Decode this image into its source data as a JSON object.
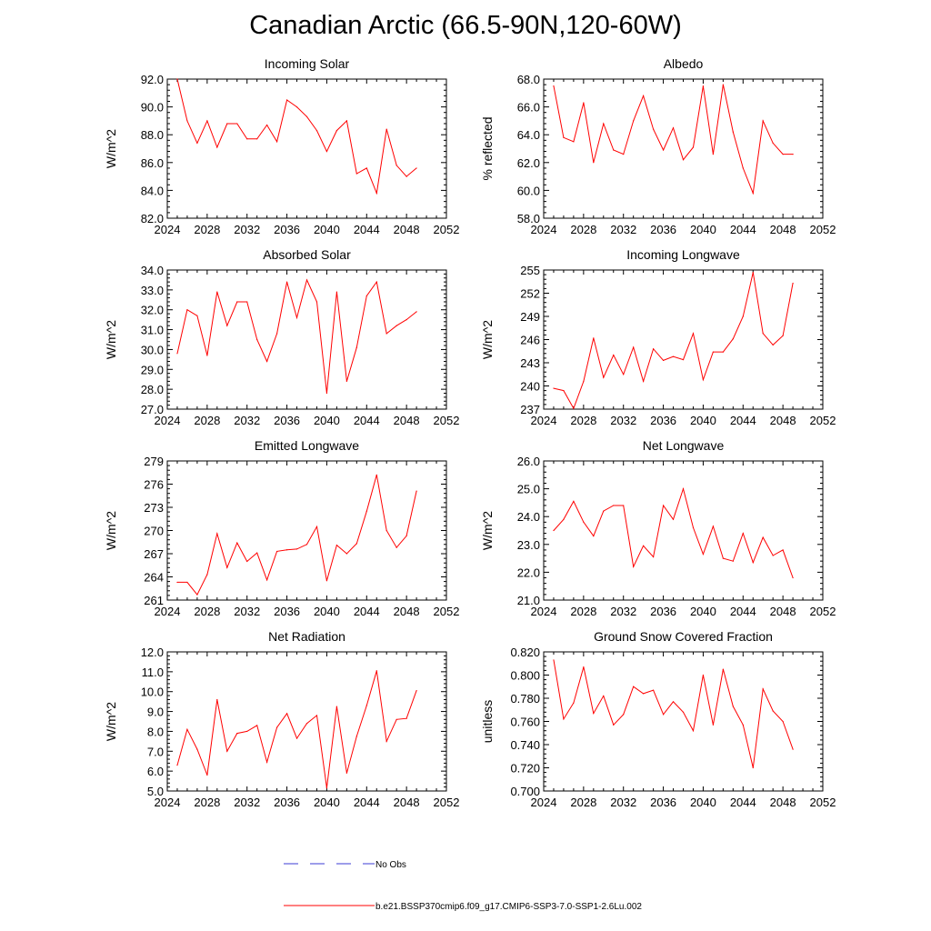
{
  "figure": {
    "title": "Canadian Arctic (66.5-90N,120-60W)"
  },
  "chart_data": [
    {
      "type": "line",
      "title": "Incoming Solar",
      "ylabel": "W/m^2",
      "xlim": [
        2024,
        2052
      ],
      "ylim": [
        82.0,
        92.0
      ],
      "xticks": [
        "2024",
        "2028",
        "2032",
        "2036",
        "2040",
        "2044",
        "2048",
        "2052"
      ],
      "yticks": [
        "82.0",
        "84.0",
        "86.0",
        "88.0",
        "90.0",
        "92.0"
      ],
      "ytick_values": [
        82,
        84,
        86,
        88,
        90,
        92
      ],
      "series": [
        {
          "name": "b.e21.BSSP370cmip6.f09_g17.CMIP6-SSP3-7.0-SSP1-2.6Lu.002",
          "x": [
            2025,
            2026,
            2027,
            2028,
            2029,
            2030,
            2031,
            2032,
            2033,
            2034,
            2035,
            2036,
            2037,
            2038,
            2039,
            2040,
            2041,
            2042,
            2043,
            2044,
            2045,
            2046,
            2047,
            2048,
            2049
          ],
          "values": [
            92.0,
            89.0,
            87.4,
            89.0,
            87.1,
            88.8,
            88.8,
            87.7,
            87.7,
            88.7,
            87.5,
            90.5,
            90.0,
            89.3,
            88.3,
            86.8,
            88.3,
            89.0,
            85.2,
            85.6,
            83.8,
            88.4,
            85.8,
            85.0,
            85.6
          ]
        }
      ]
    },
    {
      "type": "line",
      "title": "Albedo",
      "ylabel": "% reflected",
      "xlim": [
        2024,
        2052
      ],
      "ylim": [
        58.0,
        68.0
      ],
      "xticks": [
        "2024",
        "2028",
        "2032",
        "2036",
        "2040",
        "2044",
        "2048",
        "2052"
      ],
      "yticks": [
        "58.0",
        "60.0",
        "62.0",
        "64.0",
        "66.0",
        "68.0"
      ],
      "ytick_values": [
        58,
        60,
        62,
        64,
        66,
        68
      ],
      "series": [
        {
          "name": "b.e21.BSSP370cmip6.f09_g17.CMIP6-SSP3-7.0-SSP1-2.6Lu.002",
          "x": [
            2025,
            2026,
            2027,
            2028,
            2029,
            2030,
            2031,
            2032,
            2033,
            2034,
            2035,
            2036,
            2037,
            2038,
            2039,
            2040,
            2041,
            2042,
            2043,
            2044,
            2045,
            2046,
            2047,
            2048,
            2049
          ],
          "values": [
            67.5,
            63.8,
            63.5,
            66.3,
            62.0,
            64.8,
            62.9,
            62.6,
            65.0,
            66.8,
            64.4,
            62.9,
            64.5,
            62.2,
            63.1,
            67.5,
            62.6,
            67.6,
            64.2,
            61.6,
            59.8,
            65.0,
            63.4,
            62.6,
            62.6
          ]
        }
      ]
    },
    {
      "type": "line",
      "title": "Absorbed Solar",
      "ylabel": "W/m^2",
      "xlim": [
        2024,
        2052
      ],
      "ylim": [
        27.0,
        34.0
      ],
      "xticks": [
        "2024",
        "2028",
        "2032",
        "2036",
        "2040",
        "2044",
        "2048",
        "2052"
      ],
      "yticks": [
        "27.0",
        "28.0",
        "29.0",
        "30.0",
        "31.0",
        "32.0",
        "33.0",
        "34.0"
      ],
      "ytick_values": [
        27,
        28,
        29,
        30,
        31,
        32,
        33,
        34
      ],
      "series": [
        {
          "name": "b.e21.BSSP370cmip6.f09_g17.CMIP6-SSP3-7.0-SSP1-2.6Lu.002",
          "x": [
            2025,
            2026,
            2027,
            2028,
            2029,
            2030,
            2031,
            2032,
            2033,
            2034,
            2035,
            2036,
            2037,
            2038,
            2039,
            2040,
            2041,
            2042,
            2043,
            2044,
            2045,
            2046,
            2047,
            2048,
            2049
          ],
          "values": [
            29.8,
            32.0,
            31.7,
            29.7,
            32.9,
            31.2,
            32.4,
            32.4,
            30.5,
            29.4,
            30.8,
            33.4,
            31.6,
            33.5,
            32.4,
            27.8,
            32.9,
            28.4,
            30.1,
            32.7,
            33.4,
            30.8,
            31.2,
            31.5,
            31.9
          ]
        }
      ]
    },
    {
      "type": "line",
      "title": "Incoming Longwave",
      "ylabel": "W/m^2",
      "xlim": [
        2024,
        2052
      ],
      "ylim": [
        237,
        255
      ],
      "xticks": [
        "2024",
        "2028",
        "2032",
        "2036",
        "2040",
        "2044",
        "2048",
        "2052"
      ],
      "yticks": [
        "237",
        "240",
        "243",
        "246",
        "249",
        "252",
        "255"
      ],
      "ytick_values": [
        237,
        240,
        243,
        246,
        249,
        252,
        255
      ],
      "series": [
        {
          "name": "b.e21.BSSP370cmip6.f09_g17.CMIP6-SSP3-7.0-SSP1-2.6Lu.002",
          "x": [
            2025,
            2026,
            2027,
            2028,
            2029,
            2030,
            2031,
            2032,
            2033,
            2034,
            2035,
            2036,
            2037,
            2038,
            2039,
            2040,
            2041,
            2042,
            2043,
            2044,
            2045,
            2046,
            2047,
            2048,
            2049
          ],
          "values": [
            239.7,
            239.4,
            237.1,
            240.6,
            246.2,
            241.1,
            244.0,
            241.5,
            245.0,
            240.6,
            244.8,
            243.3,
            243.8,
            243.4,
            246.8,
            240.8,
            244.4,
            244.4,
            246.1,
            249.0,
            254.7,
            246.8,
            245.3,
            246.5,
            253.3
          ]
        }
      ]
    },
    {
      "type": "line",
      "title": "Emitted Longwave",
      "ylabel": "W/m^2",
      "xlim": [
        2024,
        2052
      ],
      "ylim": [
        261,
        279
      ],
      "xticks": [
        "2024",
        "2028",
        "2032",
        "2036",
        "2040",
        "2044",
        "2048",
        "2052"
      ],
      "yticks": [
        "261",
        "264",
        "267",
        "270",
        "273",
        "276",
        "279"
      ],
      "ytick_values": [
        261,
        264,
        267,
        270,
        273,
        276,
        279
      ],
      "series": [
        {
          "name": "b.e21.BSSP370cmip6.f09_g17.CMIP6-SSP3-7.0-SSP1-2.6Lu.002",
          "x": [
            2025,
            2026,
            2027,
            2028,
            2029,
            2030,
            2031,
            2032,
            2033,
            2034,
            2035,
            2036,
            2037,
            2038,
            2039,
            2040,
            2041,
            2042,
            2043,
            2044,
            2045,
            2046,
            2047,
            2048,
            2049
          ],
          "values": [
            263.3,
            263.3,
            261.7,
            264.3,
            269.6,
            265.2,
            268.4,
            266.0,
            267.1,
            263.6,
            267.3,
            267.5,
            267.6,
            268.2,
            270.5,
            263.5,
            268.1,
            267.0,
            268.3,
            272.5,
            277.2,
            270.0,
            267.8,
            269.3,
            275.1
          ]
        }
      ]
    },
    {
      "type": "line",
      "title": "Net Longwave",
      "ylabel": "W/m^2",
      "xlim": [
        2024,
        2052
      ],
      "ylim": [
        21.0,
        26.0
      ],
      "xticks": [
        "2024",
        "2028",
        "2032",
        "2036",
        "2040",
        "2044",
        "2048",
        "2052"
      ],
      "yticks": [
        "21.0",
        "22.0",
        "23.0",
        "24.0",
        "25.0",
        "26.0"
      ],
      "ytick_values": [
        21,
        22,
        23,
        24,
        25,
        26
      ],
      "series": [
        {
          "name": "b.e21.BSSP370cmip6.f09_g17.CMIP6-SSP3-7.0-SSP1-2.6Lu.002",
          "x": [
            2025,
            2026,
            2027,
            2028,
            2029,
            2030,
            2031,
            2032,
            2033,
            2034,
            2035,
            2036,
            2037,
            2038,
            2039,
            2040,
            2041,
            2042,
            2043,
            2044,
            2045,
            2046,
            2047,
            2048,
            2049
          ],
          "values": [
            23.5,
            23.9,
            24.55,
            23.8,
            23.3,
            24.2,
            24.4,
            24.4,
            22.2,
            22.95,
            22.55,
            24.4,
            23.9,
            25.0,
            23.6,
            22.65,
            23.65,
            22.5,
            22.4,
            23.4,
            22.35,
            23.25,
            22.6,
            22.8,
            21.8
          ]
        }
      ]
    },
    {
      "type": "line",
      "title": "Net Radiation",
      "ylabel": "W/m^2",
      "xlim": [
        2024,
        2052
      ],
      "ylim": [
        5.0,
        12.0
      ],
      "xticks": [
        "2024",
        "2028",
        "2032",
        "2036",
        "2040",
        "2044",
        "2048",
        "2052"
      ],
      "yticks": [
        "5.0",
        "6.0",
        "7.0",
        "8.0",
        "9.0",
        "10.0",
        "11.0",
        "12.0"
      ],
      "ytick_values": [
        5,
        6,
        7,
        8,
        9,
        10,
        11,
        12
      ],
      "series": [
        {
          "name": "b.e21.BSSP370cmip6.f09_g17.CMIP6-SSP3-7.0-SSP1-2.6Lu.002",
          "x": [
            2025,
            2026,
            2027,
            2028,
            2029,
            2030,
            2031,
            2032,
            2033,
            2034,
            2035,
            2036,
            2037,
            2038,
            2039,
            2040,
            2041,
            2042,
            2043,
            2044,
            2045,
            2046,
            2047,
            2048,
            2049
          ],
          "values": [
            6.3,
            8.1,
            7.1,
            5.8,
            9.6,
            7.0,
            7.9,
            8.0,
            8.3,
            6.45,
            8.2,
            8.9,
            7.65,
            8.4,
            8.8,
            5.15,
            9.25,
            5.9,
            7.75,
            9.3,
            11.05,
            7.5,
            8.6,
            8.65,
            10.05
          ]
        }
      ]
    },
    {
      "type": "line",
      "title": "Ground Snow Covered Fraction",
      "ylabel": "unitless",
      "xlim": [
        2024,
        2052
      ],
      "ylim": [
        0.7,
        0.82
      ],
      "xticks": [
        "2024",
        "2028",
        "2032",
        "2036",
        "2040",
        "2044",
        "2048",
        "2052"
      ],
      "yticks": [
        "0.700",
        "0.720",
        "0.740",
        "0.760",
        "0.780",
        "0.800",
        "0.820"
      ],
      "ytick_values": [
        0.7,
        0.72,
        0.74,
        0.76,
        0.78,
        0.8,
        0.82
      ],
      "series": [
        {
          "name": "b.e21.BSSP370cmip6.f09_g17.CMIP6-SSP3-7.0-SSP1-2.6Lu.002",
          "x": [
            2025,
            2026,
            2027,
            2028,
            2029,
            2030,
            2031,
            2032,
            2033,
            2034,
            2035,
            2036,
            2037,
            2038,
            2039,
            2040,
            2041,
            2042,
            2043,
            2044,
            2045,
            2046,
            2047,
            2048,
            2049
          ],
          "values": [
            0.813,
            0.762,
            0.776,
            0.807,
            0.767,
            0.782,
            0.757,
            0.766,
            0.79,
            0.784,
            0.787,
            0.766,
            0.777,
            0.768,
            0.752,
            0.8,
            0.757,
            0.805,
            0.773,
            0.757,
            0.72,
            0.788,
            0.769,
            0.76,
            0.736
          ]
        }
      ]
    }
  ],
  "legend": {
    "items": [
      {
        "label": "No Obs",
        "color": "#3b3bd6",
        "style": "dashed"
      },
      {
        "label": "b.e21.BSSP370cmip6.f09_g17.CMIP6-SSP3-7.0-SSP1-2.6Lu.002",
        "color": "#ff0000",
        "style": "solid"
      }
    ]
  },
  "colors": {
    "series_line": "#ff0000",
    "axis": "#000000"
  }
}
